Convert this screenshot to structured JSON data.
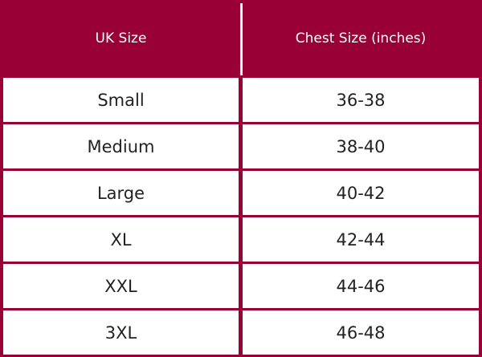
{
  "table": {
    "columns": [
      "UK Size",
      "Chest Size (inches)"
    ],
    "rows": [
      [
        "Small",
        "36-38"
      ],
      [
        "Medium",
        "38-40"
      ],
      [
        "Large",
        "40-42"
      ],
      [
        "XL",
        "42-44"
      ],
      [
        "XXL",
        "44-46"
      ],
      [
        "3XL",
        "46-48"
      ]
    ]
  }
}
